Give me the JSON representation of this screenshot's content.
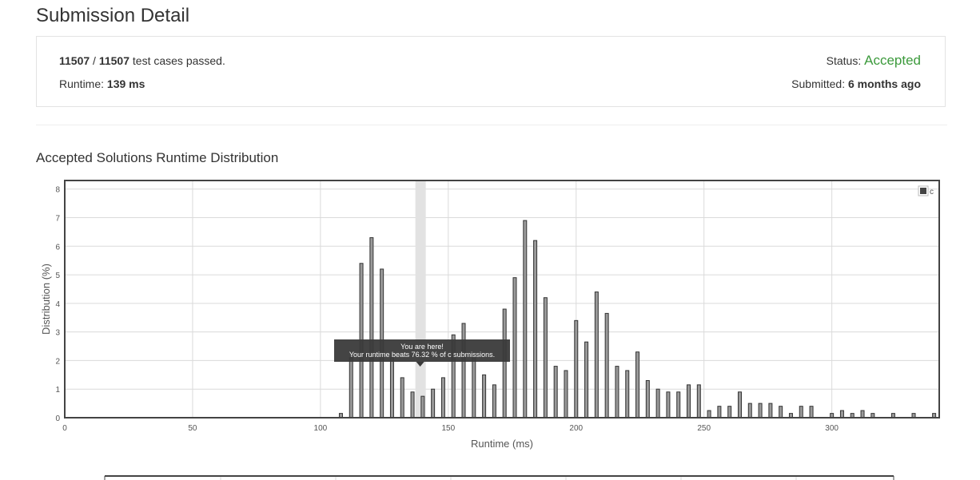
{
  "page": {
    "title": "Submission Detail"
  },
  "summary": {
    "passed": "11507",
    "separator": " / ",
    "total": "11507",
    "passed_suffix": " test cases passed.",
    "runtime_label": "Runtime: ",
    "runtime_value": "139 ms",
    "status_label": "Status: ",
    "status_value": "Accepted",
    "submitted_label": "Submitted: ",
    "submitted_value": "6 months ago"
  },
  "section": {
    "title": "Accepted Solutions Runtime Distribution"
  },
  "tooltip": {
    "line1": "You are here!",
    "line2": "Your runtime beats 76.32 % of c submissions."
  },
  "colors": {
    "accent": "#3c9a3c",
    "bar_fill": "#9a9a9a",
    "bar_stroke": "#333333",
    "highlight": "#e2e2e2"
  },
  "chart_data": {
    "type": "bar",
    "xlabel": "Runtime (ms)",
    "ylabel": "Distribution (%)",
    "xlim": [
      0,
      342
    ],
    "ylim": [
      0,
      8.3
    ],
    "x_ticks": [
      0,
      50,
      100,
      150,
      200,
      250,
      300
    ],
    "y_ticks": [
      0,
      1,
      2,
      3,
      4,
      5,
      6,
      7,
      8
    ],
    "grid": true,
    "legend": {
      "position": "top-right",
      "entries": [
        "c"
      ]
    },
    "highlight_x": 139,
    "series": [
      {
        "name": "c",
        "x": [
          108,
          112,
          116,
          120,
          124,
          128,
          132,
          136,
          140,
          144,
          148,
          152,
          156,
          160,
          164,
          168,
          172,
          176,
          180,
          184,
          188,
          192,
          196,
          200,
          204,
          208,
          212,
          216,
          220,
          224,
          228,
          232,
          236,
          240,
          244,
          248,
          252,
          256,
          260,
          264,
          268,
          272,
          276,
          280,
          284,
          288,
          292,
          296,
          300,
          304,
          308,
          312,
          316,
          320,
          324,
          328,
          332,
          336,
          340
        ],
        "values": [
          0.15,
          2.1,
          5.4,
          6.3,
          5.2,
          2.1,
          1.4,
          0.9,
          0.75,
          1.0,
          1.4,
          2.9,
          3.3,
          2.1,
          1.5,
          1.15,
          3.8,
          4.9,
          6.9,
          6.2,
          4.2,
          1.8,
          1.65,
          3.4,
          2.65,
          4.4,
          3.65,
          1.8,
          1.65,
          2.3,
          1.3,
          1.0,
          0.9,
          0.9,
          1.15,
          1.15,
          0.25,
          0.4,
          0.4,
          0.9,
          0.5,
          0.5,
          0.5,
          0.4,
          0.15,
          0.4,
          0.4,
          0,
          0.15,
          0.25,
          0.15,
          0.25,
          0.15,
          0,
          0.15,
          0,
          0.15,
          0,
          0.15
        ]
      }
    ]
  }
}
